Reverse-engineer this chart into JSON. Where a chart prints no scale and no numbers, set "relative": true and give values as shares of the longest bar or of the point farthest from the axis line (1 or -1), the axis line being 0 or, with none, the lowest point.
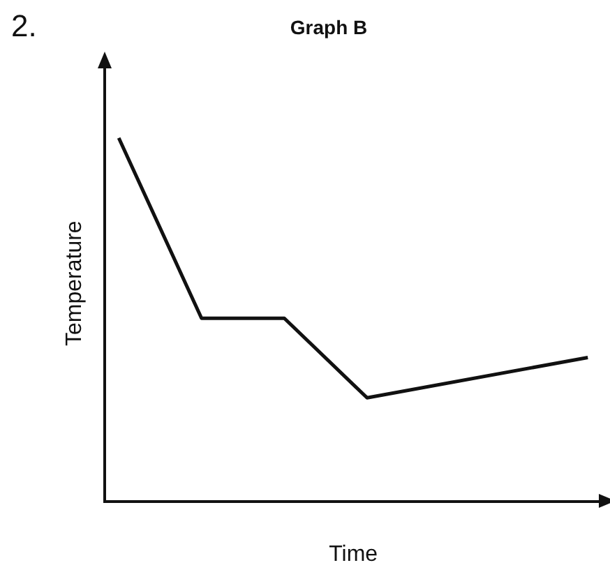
{
  "chart_data": {
    "type": "line",
    "title": "Graph B",
    "xlabel": "Time",
    "ylabel": "Temperature",
    "annotations": [
      "2."
    ],
    "relative": true,
    "categories": [
      null,
      null,
      null,
      null,
      null,
      null,
      null,
      null,
      null,
      null,
      null,
      null,
      null,
      null,
      null,
      null,
      null,
      null
    ],
    "series": [
      {
        "color": "#111111",
        "values": [
          1,
          null,
          null,
          0.504,
          null,
          null,
          0.504,
          null,
          null,
          0.285,
          null,
          null,
          null,
          null,
          null,
          null,
          null,
          0.396
        ]
      }
    ],
    "marker": "none",
    "line_style": "solid",
    "grid": false,
    "legend": false
  }
}
